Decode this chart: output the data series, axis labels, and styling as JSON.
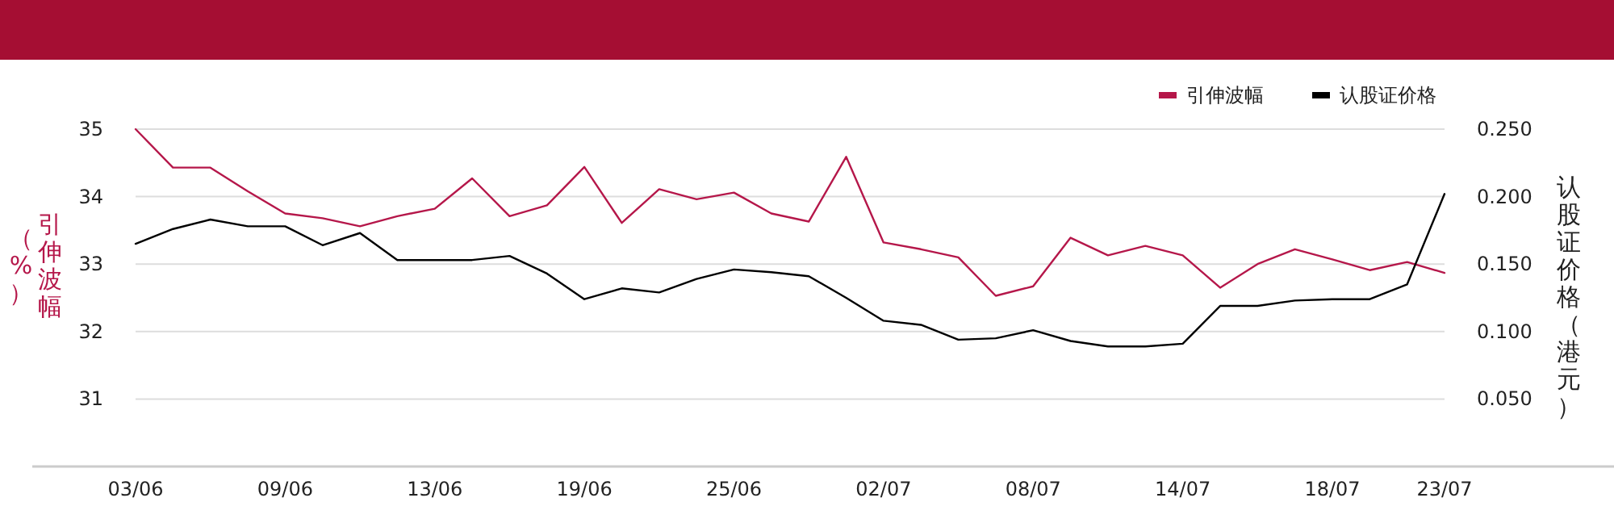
{
  "chart_data": {
    "type": "line",
    "categories": [
      "03/06",
      null,
      null,
      null,
      "09/06",
      null,
      null,
      null,
      "13/06",
      null,
      null,
      null,
      "19/06",
      null,
      null,
      null,
      "25/06",
      null,
      null,
      null,
      "02/07",
      null,
      null,
      null,
      "08/07",
      null,
      null,
      null,
      "14/07",
      null,
      null,
      null,
      "18/07",
      null,
      null,
      "23/07"
    ],
    "series": [
      {
        "name": "引伸波幅",
        "color": "#b5174a",
        "values": [
          35.0,
          34.43,
          34.43,
          34.08,
          33.75,
          33.68,
          33.56,
          33.71,
          33.82,
          34.27,
          33.71,
          33.87,
          34.44,
          33.61,
          34.11,
          33.96,
          34.06,
          33.75,
          33.63,
          34.59,
          33.32,
          33.22,
          33.1,
          32.53,
          32.67,
          33.39,
          33.13,
          33.27,
          33.13,
          32.65,
          33.0,
          33.22,
          33.07,
          32.91,
          33.03,
          32.87
        ]
      },
      {
        "name": "认股证价格",
        "color": "#000000",
        "axis": "y2",
        "values": [
          0.165,
          0.176,
          0.183,
          0.178,
          0.178,
          0.164,
          0.173,
          0.153,
          0.153,
          0.153,
          0.156,
          0.143,
          0.124,
          0.132,
          0.129,
          0.139,
          0.146,
          0.144,
          0.141,
          0.125,
          0.108,
          0.105,
          0.094,
          0.095,
          0.101,
          0.093,
          0.089,
          0.089,
          0.091,
          0.119,
          0.119,
          0.123,
          0.124,
          0.124,
          0.135,
          0.202
        ]
      }
    ],
    "ylabel": "引伸波幅（%）",
    "y2label": "认股证价格（港元）",
    "ylim": [
      30,
      35
    ],
    "yticks": [
      31,
      32,
      33,
      34,
      35
    ],
    "y2lim": [
      0,
      0.25
    ],
    "y2ticks": [
      {
        "value": 0.05,
        "label": "0.050"
      },
      {
        "value": 0.1,
        "label": "0.100"
      },
      {
        "value": 0.15,
        "label": "0.150"
      },
      {
        "value": 0.2,
        "label": "0.200"
      },
      {
        "value": 0.25,
        "label": "0.250"
      }
    ],
    "grid": "y",
    "legend": "top right"
  }
}
